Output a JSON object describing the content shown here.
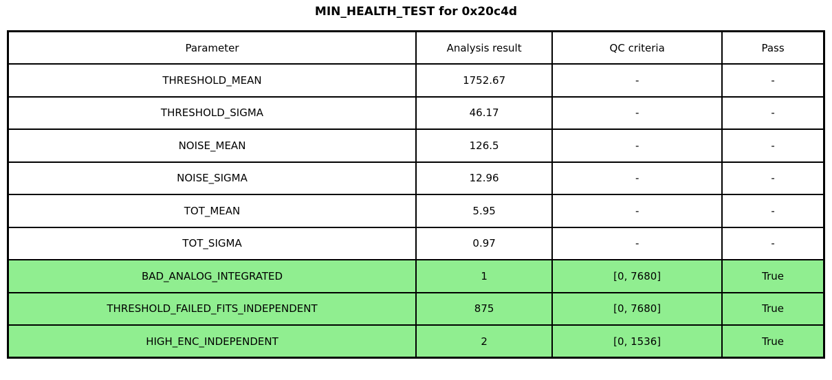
{
  "colors": {
    "pass_green": "#90EE90",
    "border": "#000000",
    "background": "#FFFFFF"
  },
  "chart_data": {
    "type": "table",
    "title": "MIN_HEALTH_TEST for 0x20c4d",
    "columns": [
      "Parameter",
      "Analysis result",
      "QC criteria",
      "Pass"
    ],
    "rows": [
      [
        "THRESHOLD_MEAN",
        "1752.67",
        "-",
        "-"
      ],
      [
        "THRESHOLD_SIGMA",
        "46.17",
        "-",
        "-"
      ],
      [
        "NOISE_MEAN",
        "126.5",
        "-",
        "-"
      ],
      [
        "NOISE_SIGMA",
        "12.96",
        "-",
        "-"
      ],
      [
        "TOT_MEAN",
        "5.95",
        "-",
        "-"
      ],
      [
        "TOT_SIGMA",
        "0.97",
        "-",
        "-"
      ],
      [
        "BAD_ANALOG_INTEGRATED",
        "1",
        "[0, 7680]",
        "True"
      ],
      [
        "THRESHOLD_FAILED_FITS_INDEPENDENT",
        "875",
        "[0, 7680]",
        "True"
      ],
      [
        "HIGH_ENC_INDEPENDENT",
        "2",
        "[0, 1536]",
        "True"
      ]
    ],
    "highlighted_rows": [
      6,
      7,
      8
    ],
    "highlight_color": "#90EE90",
    "layout": {
      "column_widths_pct": [
        50.0,
        16.7,
        20.8,
        12.5
      ],
      "header_background": "#FFFFFF",
      "text_color": "#000000"
    }
  }
}
